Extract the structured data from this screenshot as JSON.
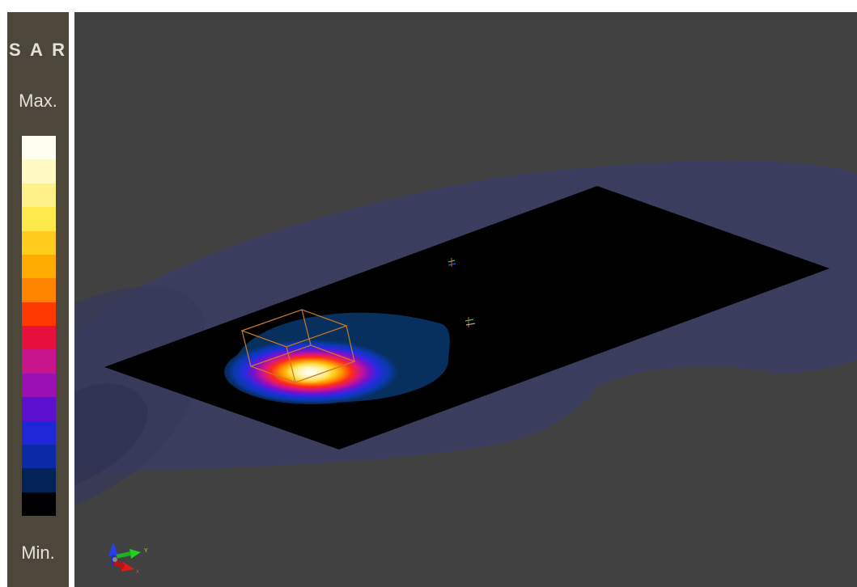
{
  "legend": {
    "title": "S A R",
    "max_label": "Max.",
    "min_label": "Min.",
    "colors": [
      "#fffff0",
      "#fff9c4",
      "#fff18a",
      "#ffe84a",
      "#ffcc1e",
      "#ffab00",
      "#ff8500",
      "#ff3a00",
      "#e8103c",
      "#c8148c",
      "#9a10b4",
      "#5a10cc",
      "#1e26d8",
      "#0a2aa8",
      "#032258",
      "#000000"
    ]
  },
  "viewport": {
    "background": "#414141",
    "icons": [
      "axes-triad-icon",
      "probe-marker-icon"
    ]
  }
}
